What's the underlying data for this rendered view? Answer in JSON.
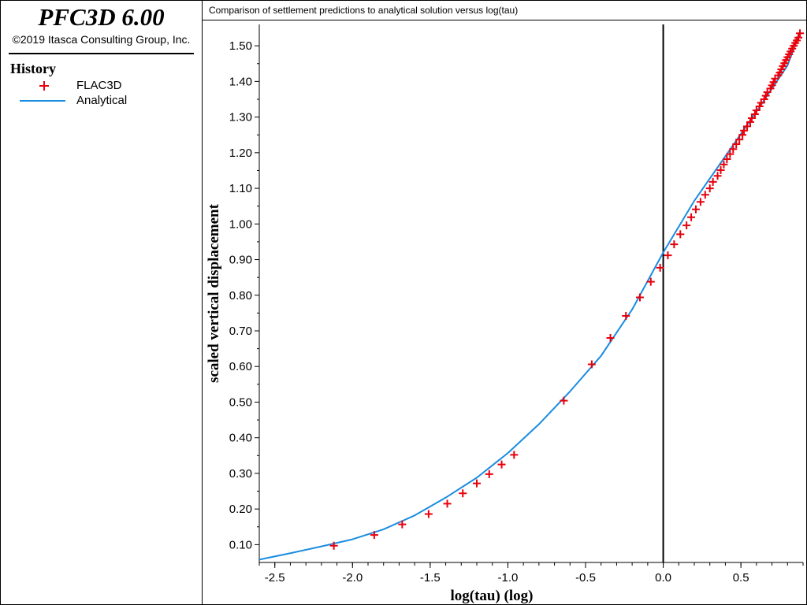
{
  "app": {
    "title": "PFC3D 6.00",
    "copyright": "©2019 Itasca Consulting Group, Inc."
  },
  "legend": {
    "heading": "History",
    "items": [
      {
        "label": "FLAC3D",
        "symbol": "plus",
        "color": "#e8000b"
      },
      {
        "label": "Analytical",
        "symbol": "line",
        "color": "#1a8ce0"
      }
    ]
  },
  "chart_data": {
    "type": "line",
    "title": "Comparison of settlement predictions to analytical solution versus log(tau)",
    "xlabel": "log(tau) (log)",
    "ylabel": "scaled vertical displacement",
    "xlim": [
      -2.6,
      0.9
    ],
    "ylim": [
      0.05,
      1.56
    ],
    "x_ticks": [
      -2.5,
      -2.0,
      -1.5,
      -1.0,
      -0.5,
      0.0,
      0.5
    ],
    "x_tick_labels": [
      "-2.5",
      "-2.0",
      "-1.5",
      "-1.0",
      "-0.5",
      "0.0",
      "0.5"
    ],
    "y_ticks": [
      0.1,
      0.2,
      0.3,
      0.4,
      0.5,
      0.6,
      0.7,
      0.8,
      0.9,
      1.0,
      1.1,
      1.2,
      1.3,
      1.4,
      1.5
    ],
    "y_tick_labels": [
      "0.10",
      "0.20",
      "0.30",
      "0.40",
      "0.50",
      "0.60",
      "0.70",
      "0.80",
      "0.90",
      "1.00",
      "1.10",
      "1.20",
      "1.30",
      "1.40",
      "1.50"
    ],
    "zero_line_x": 0.0,
    "grid": false,
    "series": [
      {
        "name": "FLAC3D",
        "style": "scatter-plus",
        "color": "#e8000b",
        "x": [
          -2.12,
          -1.86,
          -1.68,
          -1.51,
          -1.39,
          -1.29,
          -1.2,
          -1.12,
          -1.04,
          -0.96,
          -0.64,
          -0.46,
          -0.34,
          -0.24,
          -0.15,
          -0.08,
          -0.02,
          0.03,
          0.07,
          0.11,
          0.15,
          0.18,
          0.21,
          0.24,
          0.27,
          0.3,
          0.32,
          0.35,
          0.37,
          0.39,
          0.41,
          0.43,
          0.45,
          0.47,
          0.49,
          0.51,
          0.52,
          0.54,
          0.56,
          0.57,
          0.59,
          0.6,
          0.62,
          0.63,
          0.65,
          0.66,
          0.67,
          0.69,
          0.7,
          0.71,
          0.72,
          0.74,
          0.75,
          0.76,
          0.77,
          0.78,
          0.79,
          0.8,
          0.81,
          0.82,
          0.83,
          0.84,
          0.85,
          0.86,
          0.87,
          0.88
        ],
        "y": [
          0.097,
          0.127,
          0.157,
          0.186,
          0.215,
          0.244,
          0.272,
          0.298,
          0.325,
          0.352,
          0.504,
          0.606,
          0.68,
          0.742,
          0.794,
          0.838,
          0.877,
          0.912,
          0.943,
          0.971,
          0.996,
          1.019,
          1.041,
          1.062,
          1.082,
          1.1,
          1.118,
          1.135,
          1.151,
          1.167,
          1.182,
          1.196,
          1.21,
          1.224,
          1.237,
          1.25,
          1.262,
          1.274,
          1.286,
          1.297,
          1.308,
          1.319,
          1.33,
          1.34,
          1.35,
          1.36,
          1.37,
          1.38,
          1.389,
          1.398,
          1.408,
          1.417,
          1.425,
          1.434,
          1.443,
          1.451,
          1.46,
          1.468,
          1.476,
          1.484,
          1.492,
          1.5,
          1.508,
          1.515,
          1.523,
          1.535
        ]
      },
      {
        "name": "Analytical",
        "style": "line",
        "color": "#1a8ce0",
        "x": [
          -2.6,
          -2.4,
          -2.2,
          -2.0,
          -1.8,
          -1.6,
          -1.4,
          -1.2,
          -1.0,
          -0.8,
          -0.6,
          -0.4,
          -0.2,
          0.0,
          0.2,
          0.4,
          0.6,
          0.8,
          0.88
        ],
        "y": [
          0.058,
          0.076,
          0.095,
          0.115,
          0.143,
          0.182,
          0.232,
          0.288,
          0.357,
          0.438,
          0.53,
          0.63,
          0.76,
          0.92,
          1.065,
          1.19,
          1.315,
          1.445,
          1.54
        ]
      }
    ]
  }
}
